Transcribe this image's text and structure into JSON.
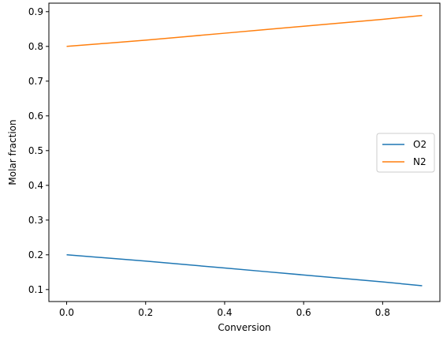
{
  "chart_data": {
    "type": "line",
    "title": "",
    "xlabel": "Conversion",
    "ylabel": "Molar fraction",
    "xlim": [
      -0.045,
      0.945
    ],
    "ylim": [
      0.0655,
      0.9245
    ],
    "xticks": [
      0.0,
      0.2,
      0.4,
      0.6,
      0.8
    ],
    "xtick_labels": [
      "0.0",
      "0.2",
      "0.4",
      "0.6",
      "0.8"
    ],
    "yticks": [
      0.1,
      0.2,
      0.3,
      0.4,
      0.5,
      0.6,
      0.7,
      0.8,
      0.9
    ],
    "ytick_labels": [
      "0.1",
      "0.2",
      "0.3",
      "0.4",
      "0.5",
      "0.6",
      "0.7",
      "0.8",
      "0.9"
    ],
    "grid": false,
    "legend_position": "center-right",
    "series": [
      {
        "name": "O2",
        "color": "#1f77b4",
        "x": [
          0.0,
          0.1,
          0.2,
          0.3,
          0.4,
          0.5,
          0.6,
          0.7,
          0.8,
          0.9
        ],
        "y": [
          0.2,
          0.191,
          0.182,
          0.172,
          0.162,
          0.152,
          0.142,
          0.132,
          0.122,
          0.111
        ]
      },
      {
        "name": "N2",
        "color": "#ff7f0e",
        "x": [
          0.0,
          0.1,
          0.2,
          0.3,
          0.4,
          0.5,
          0.6,
          0.7,
          0.8,
          0.9
        ],
        "y": [
          0.8,
          0.809,
          0.818,
          0.828,
          0.838,
          0.848,
          0.858,
          0.868,
          0.878,
          0.889
        ]
      }
    ]
  }
}
